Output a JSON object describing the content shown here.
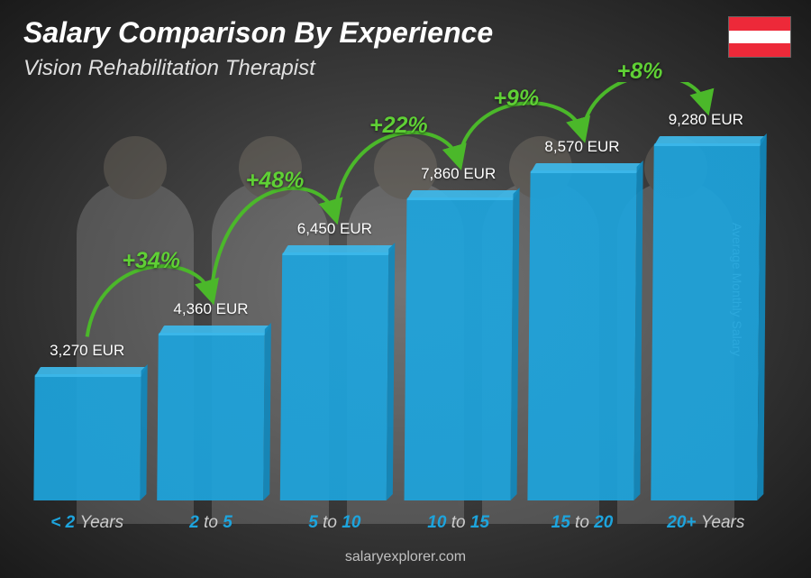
{
  "title": "Salary Comparison By Experience",
  "title_fontsize": 32,
  "subtitle": "Vision Rehabilitation Therapist",
  "subtitle_fontsize": 24,
  "y_axis_label": "Average Monthly Salary",
  "attribution": "salaryexplorer.com",
  "flag": {
    "stripes": [
      "#ed2939",
      "#ffffff",
      "#ed2939"
    ]
  },
  "chart": {
    "type": "bar",
    "currency": "EUR",
    "max_value": 10000,
    "bar_color": "#1da4dd",
    "bar_top_color": "#3db8ea",
    "bar_side_color": "#1189bd",
    "bar_opacity": 0.92,
    "accent_color": "#1da4dd",
    "pct_color": "#5fd035",
    "pct_fontsize": 25,
    "arrow_color": "#4bb82a",
    "categories": [
      {
        "label_accent": "< 2",
        "label_muted": "Years"
      },
      {
        "label_accent": "2",
        "label_mid": "to",
        "label_accent2": "5"
      },
      {
        "label_accent": "5",
        "label_mid": "to",
        "label_accent2": "10"
      },
      {
        "label_accent": "10",
        "label_mid": "to",
        "label_accent2": "15"
      },
      {
        "label_accent": "15",
        "label_mid": "to",
        "label_accent2": "20"
      },
      {
        "label_accent": "20+",
        "label_muted": "Years"
      }
    ],
    "values": [
      3270,
      4360,
      6450,
      7860,
      8570,
      9280
    ],
    "value_labels": [
      "3,270 EUR",
      "4,360 EUR",
      "6,450 EUR",
      "7,860 EUR",
      "8,570 EUR",
      "9,280 EUR"
    ],
    "pct_changes": [
      "+34%",
      "+48%",
      "+22%",
      "+9%",
      "+8%"
    ]
  }
}
